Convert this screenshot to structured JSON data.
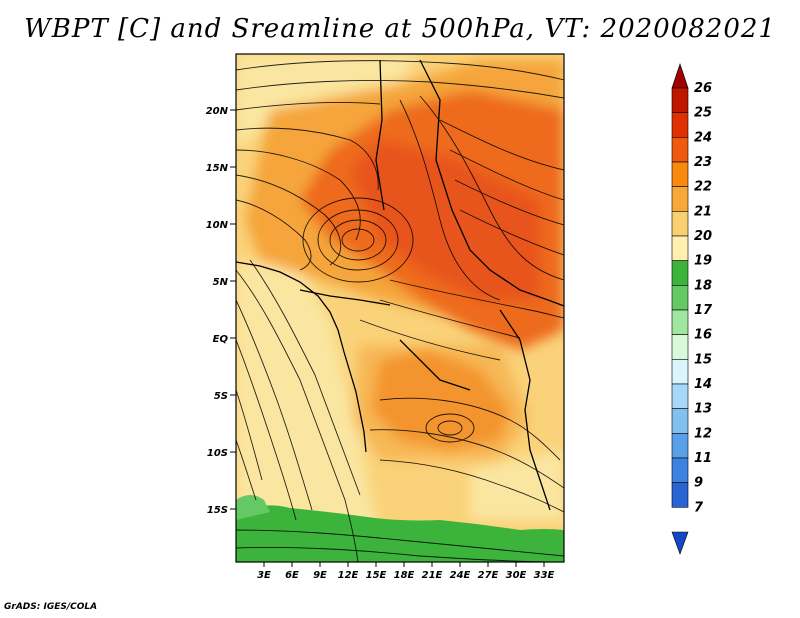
{
  "title": "WBPT [C] and Sreamline at 500hPa, VT: 2020082021",
  "credit": "GrADS: IGES/COLA",
  "map": {
    "lat_labels": [
      "20N",
      "15N",
      "10N",
      "5N",
      "EQ",
      "5S",
      "10S",
      "15S"
    ],
    "lon_labels": [
      "3E",
      "6E",
      "9E",
      "12E",
      "15E",
      "18E",
      "21E",
      "24E",
      "27E",
      "30E",
      "33E"
    ]
  },
  "colorbar": {
    "levels": [
      "26",
      "25",
      "24",
      "23",
      "22",
      "21",
      "20",
      "19",
      "18",
      "17",
      "16",
      "15",
      "14",
      "13",
      "12",
      "11",
      "9",
      "7"
    ],
    "colors": [
      "#a00000",
      "#c01800",
      "#e03000",
      "#f05a10",
      "#f88a10",
      "#f8a838",
      "#f8d070",
      "#fff0b0",
      "#3cb43c",
      "#64c864",
      "#a0e6a0",
      "#daf8da",
      "#daf4fc",
      "#a8d8f8",
      "#82c0f0",
      "#5aa0e8",
      "#3c82e0",
      "#2864d2",
      "#1446c8"
    ]
  },
  "colors": {
    "light_yellow": "#fae6a0",
    "yellow": "#fad27a",
    "orange_light": "#f5a53a",
    "orange": "#f07a20",
    "red_orange": "#e8541c",
    "green": "#3cb43c"
  }
}
